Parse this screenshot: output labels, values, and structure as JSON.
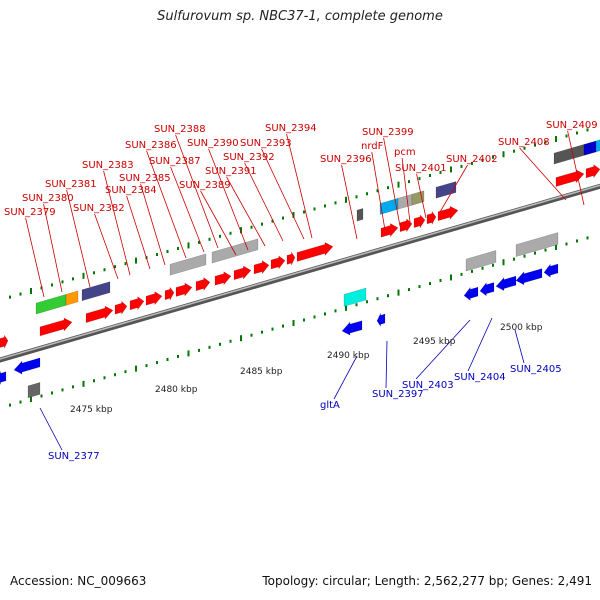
{
  "title": "Sulfurovum sp. NBC37-1, complete genome",
  "footer": {
    "accession": "Accession: NC_009663",
    "topology": "Topology: circular; Length: 2,562,277 bp; Genes: 2,491"
  },
  "colors": {
    "forward_gene": "#ff0000",
    "reverse_gene": "#0000ee",
    "forward_label": "#cc0000",
    "reverse_label": "#0000bb",
    "backbone": "#777777",
    "tick": "#007700"
  },
  "scale": {
    "ticks": [
      "2475 kbp",
      "2480 kbp",
      "2485 kbp",
      "2490 kbp",
      "2495 kbp",
      "2500 kbp"
    ]
  },
  "forward_labels": [
    "SUN_2379",
    "SUN_2380",
    "SUN_2381",
    "SUN_2382",
    "SUN_2383",
    "SUN_2384",
    "SUN_2385",
    "SUN_2386",
    "SUN_2387",
    "SUN_2388",
    "SUN_2389",
    "SUN_2390",
    "SUN_2391",
    "SUN_2392",
    "SUN_2393",
    "SUN_2394",
    "SUN_2396",
    "nrdF",
    "SUN_2399",
    "pcm",
    "SUN_2401",
    "SUN_2402",
    "SUN_2408",
    "SUN_2409"
  ],
  "reverse_labels": [
    "SUN_2377",
    "gltA",
    "SUN_2397",
    "SUN_2403",
    "SUN_2404",
    "SUN_2405"
  ]
}
